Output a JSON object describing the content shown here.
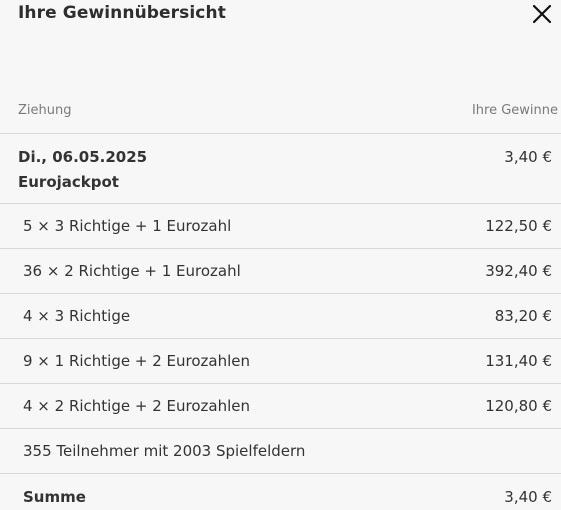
{
  "header": {
    "title": "Ihre Gewinnübersicht",
    "close_icon": "close-icon"
  },
  "columns": {
    "left": "Ziehung",
    "right": "Ihre Gewinne"
  },
  "draw": {
    "date": "Di., 06.05.2025",
    "game": "Eurojackpot",
    "amount": "3,40 €"
  },
  "rows": [
    {
      "label": "5 × 3 Richtige + 1 Eurozahl",
      "amount": "122,50 €"
    },
    {
      "label": "36 × 2 Richtige + 1 Eurozahl",
      "amount": "392,40 €"
    },
    {
      "label": "4 × 3 Richtige",
      "amount": "83,20 €"
    },
    {
      "label": "9 × 1 Richtige + 2 Eurozahlen",
      "amount": "131,40 €"
    },
    {
      "label": "4 × 2 Richtige + 2 Eurozahlen",
      "amount": "120,80 €"
    },
    {
      "label": "355 Teilnehmer mit 2003 Spielfeldern",
      "amount": ""
    }
  ],
  "summary": {
    "label": "Summe",
    "amount": "3,40 €"
  },
  "colors": {
    "background": "#f7f7f7",
    "divider": "#d9d9d9",
    "text": "#333333",
    "muted": "#7a7a7a"
  }
}
